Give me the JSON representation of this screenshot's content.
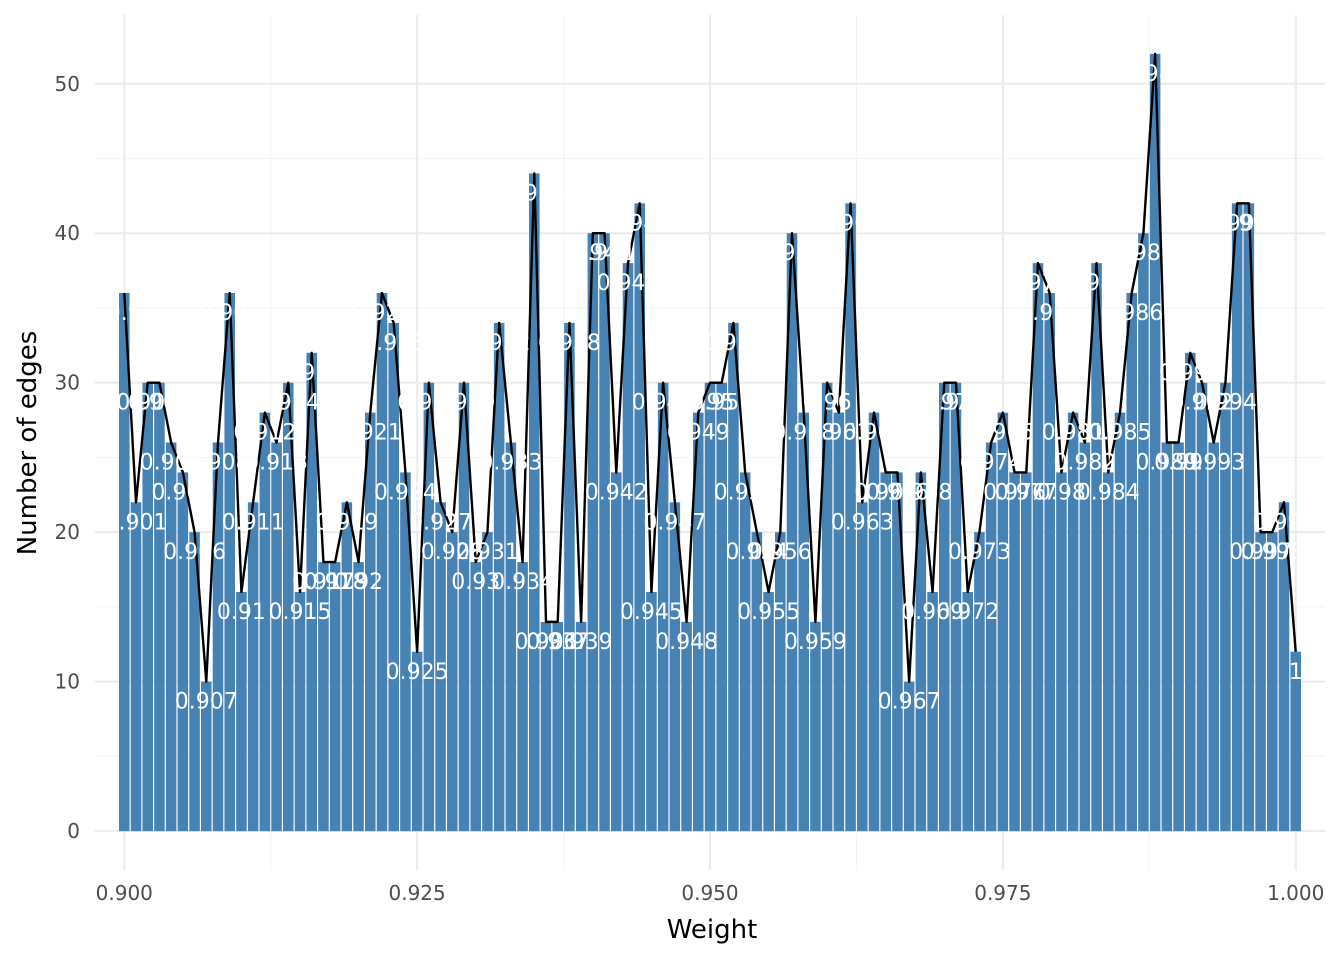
{
  "chart_data": {
    "type": "bar",
    "title": "",
    "xlabel": "Weight",
    "ylabel": "Number of edges",
    "bar_color": "#4682b4",
    "line_color": "#000000",
    "label_color": "#ffffff",
    "grid": true,
    "xlim": [
      0.8975,
      1.0025
    ],
    "ylim": [
      -2.6,
      54.6
    ],
    "x_ticks": [
      0.9,
      0.925,
      0.95,
      0.975,
      1.0
    ],
    "x_tick_labels": [
      "0.900",
      "0.925",
      "0.950",
      "0.975",
      "1.000"
    ],
    "y_ticks": [
      0,
      10,
      20,
      30,
      40,
      50
    ],
    "y_tick_labels": [
      "0",
      "10",
      "20",
      "30",
      "40",
      "50"
    ],
    "x": [
      0.9,
      0.901,
      0.902,
      0.903,
      0.904,
      0.905,
      0.906,
      0.907,
      0.908,
      0.909,
      0.91,
      0.911,
      0.912,
      0.913,
      0.914,
      0.915,
      0.916,
      0.917,
      0.918,
      0.919,
      0.92,
      0.921,
      0.922,
      0.923,
      0.924,
      0.925,
      0.926,
      0.927,
      0.928,
      0.929,
      0.93,
      0.931,
      0.932,
      0.933,
      0.934,
      0.935,
      0.936,
      0.937,
      0.938,
      0.939,
      0.94,
      0.941,
      0.942,
      0.943,
      0.944,
      0.945,
      0.946,
      0.947,
      0.948,
      0.949,
      0.95,
      0.951,
      0.952,
      0.953,
      0.954,
      0.955,
      0.956,
      0.957,
      0.958,
      0.959,
      0.96,
      0.961,
      0.962,
      0.963,
      0.964,
      0.965,
      0.966,
      0.967,
      0.968,
      0.969,
      0.97,
      0.971,
      0.972,
      0.973,
      0.974,
      0.975,
      0.976,
      0.977,
      0.978,
      0.979,
      0.98,
      0.981,
      0.982,
      0.983,
      0.984,
      0.985,
      0.986,
      0.987,
      0.988,
      0.989,
      0.99,
      0.991,
      0.992,
      0.993,
      0.994,
      0.995,
      0.996,
      0.997,
      0.998,
      0.999,
      1.0
    ],
    "values": [
      36,
      22,
      30,
      30,
      26,
      24,
      20,
      10,
      26,
      36,
      16,
      22,
      28,
      26,
      30,
      16,
      32,
      18,
      18,
      22,
      18,
      28,
      36,
      34,
      24,
      12,
      30,
      22,
      20,
      30,
      18,
      20,
      34,
      26,
      18,
      44,
      14,
      14,
      34,
      14,
      40,
      40,
      24,
      38,
      42,
      16,
      30,
      22,
      14,
      28,
      30,
      30,
      34,
      24,
      20,
      16,
      20,
      40,
      28,
      14,
      30,
      28,
      42,
      22,
      28,
      24,
      24,
      10,
      24,
      16,
      30,
      30,
      16,
      20,
      26,
      28,
      24,
      24,
      38,
      36,
      24,
      28,
      26,
      38,
      24,
      28,
      36,
      40,
      52,
      26,
      26,
      32,
      30,
      26,
      30,
      42,
      42,
      20,
      20,
      22,
      12
    ],
    "labels": [
      "0.9",
      "0.901",
      "0.902",
      "0.903",
      "0.904",
      "0.905",
      "0.906",
      "0.907",
      "0.908",
      "0.909",
      "0.91",
      "0.911",
      "0.912",
      "0.913",
      "0.914",
      "0.915",
      "0.916",
      "0.917",
      "0.918",
      "0.919",
      "0.92",
      "0.921",
      "0.922",
      "0.923",
      "0.924",
      "0.925",
      "0.926",
      "0.927",
      "0.928",
      "0.929",
      "0.93",
      "0.931",
      "0.932",
      "0.933",
      "0.934",
      "0.935",
      "0.936",
      "0.937",
      "0.938",
      "0.939",
      "0.94",
      "0.941",
      "0.942",
      "0.943",
      "0.944",
      "0.945",
      "0.946",
      "0.947",
      "0.948",
      "0.949",
      "0.95",
      "0.951",
      "0.952",
      "0.953",
      "0.954",
      "0.955",
      "0.956",
      "0.957",
      "0.958",
      "0.959",
      "0.96",
      "0.961",
      "0.962",
      "0.963",
      "0.964",
      "0.965",
      "0.966",
      "0.967",
      "0.968",
      "0.969",
      "0.97",
      "0.971",
      "0.972",
      "0.973",
      "0.974",
      "0.975",
      "0.976",
      "0.977",
      "0.978",
      "0.979",
      "0.98",
      "0.981",
      "0.982",
      "0.983",
      "0.984",
      "0.985",
      "0.986",
      "0.987",
      "0.988",
      "0.989",
      "0.99",
      "0.991",
      "0.992",
      "0.993",
      "0.994",
      "0.995",
      "0.996",
      "0.997",
      "0.998",
      "0.999",
      "1"
    ]
  }
}
